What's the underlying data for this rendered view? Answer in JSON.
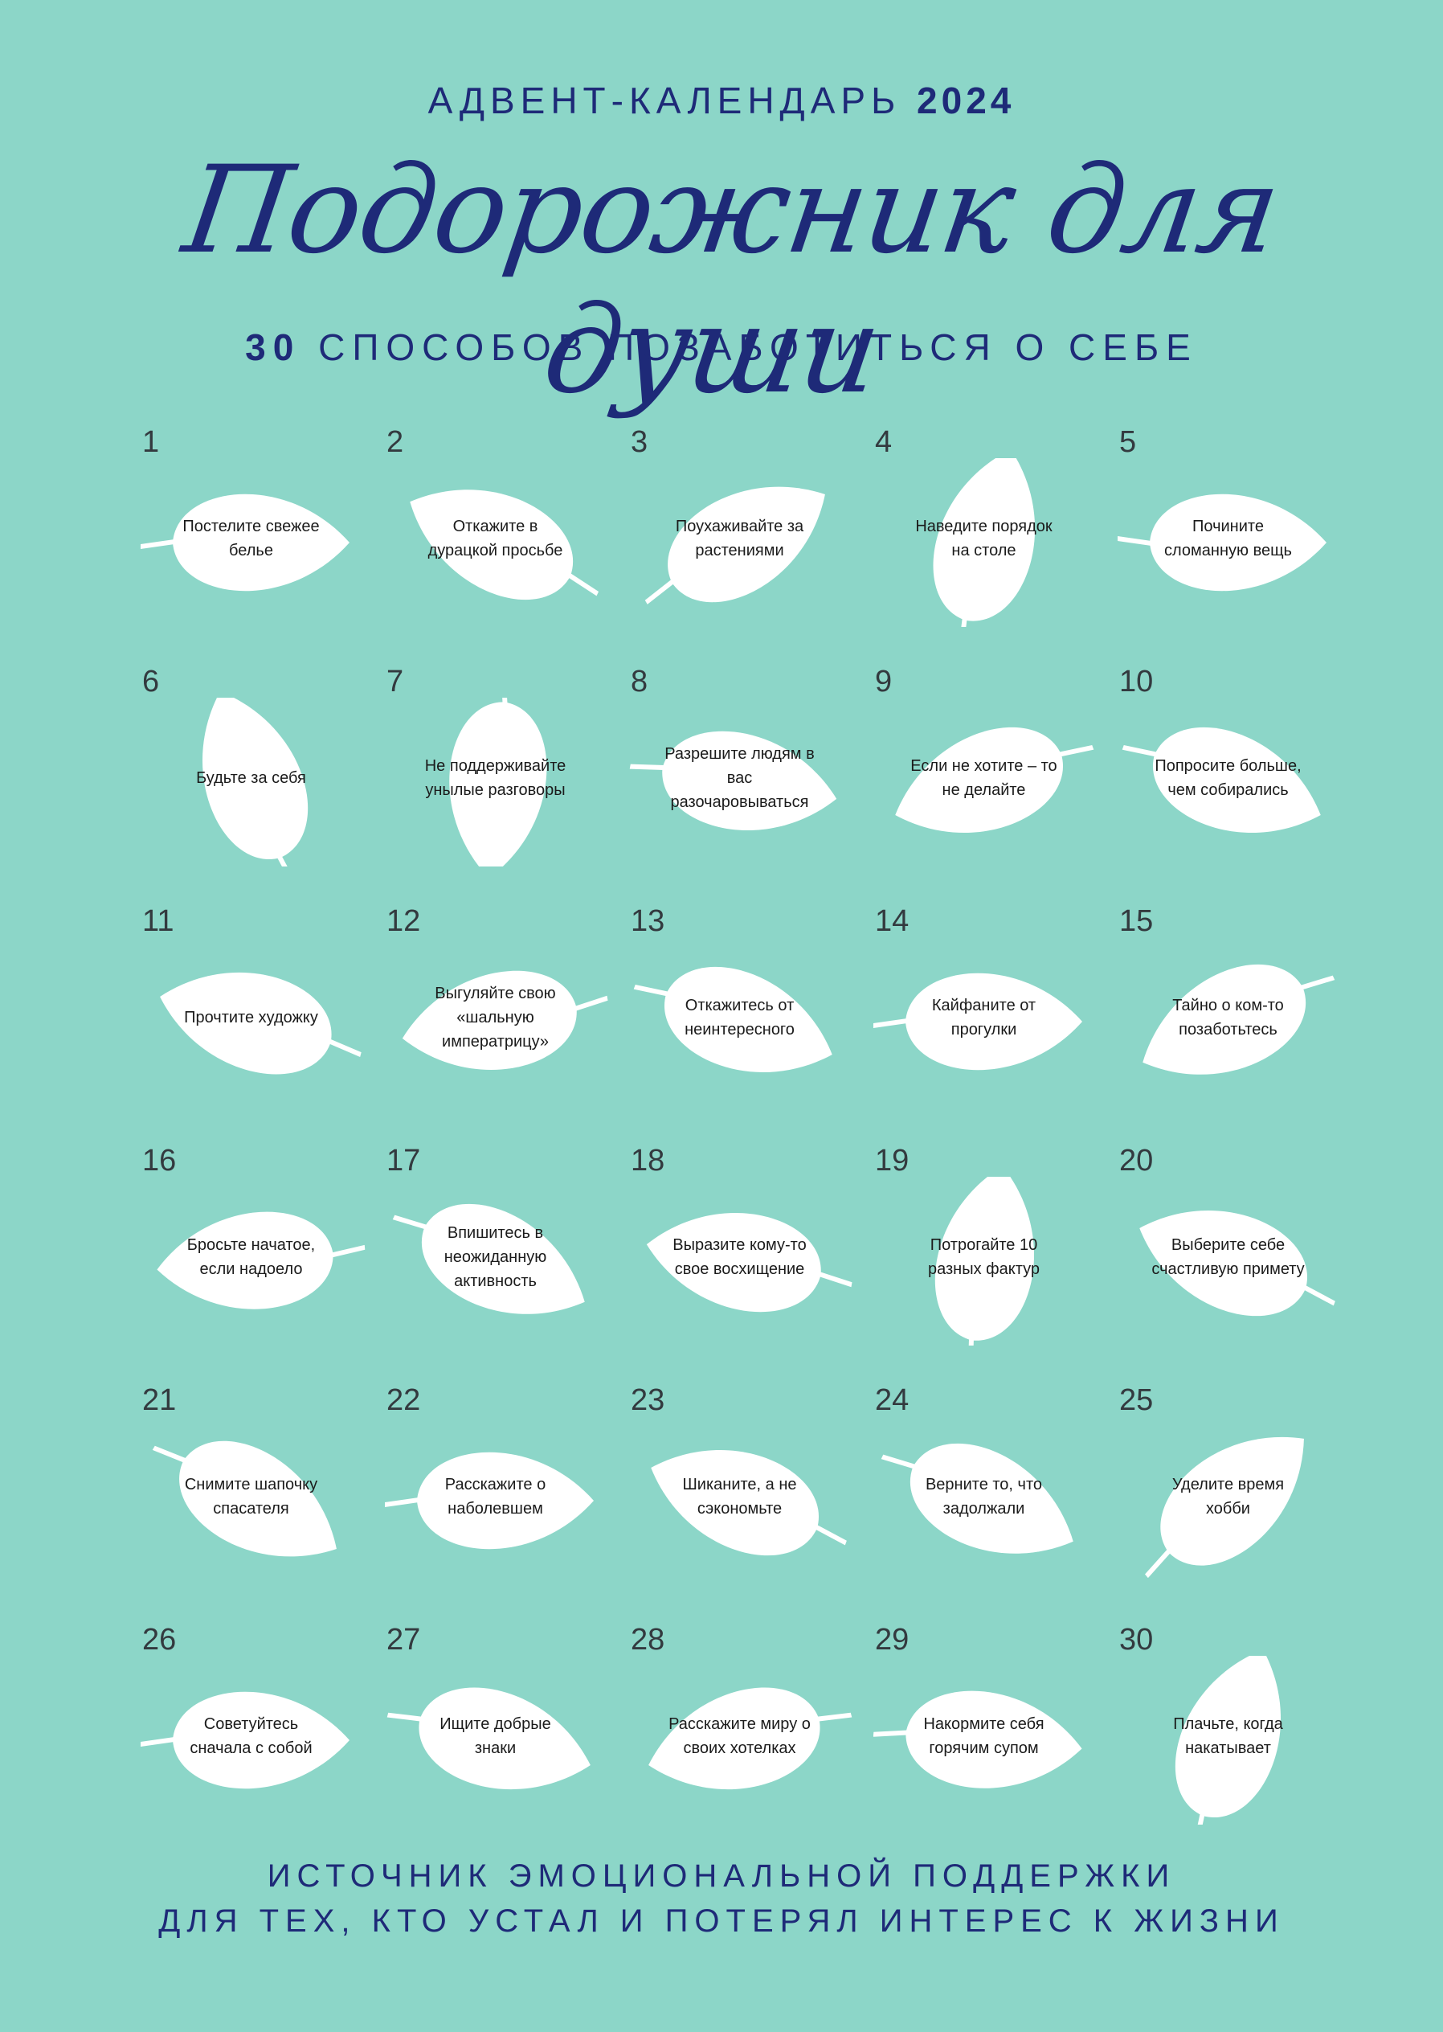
{
  "header": {
    "kicker": "АДВЕНТ-КАЛЕНДАРЬ",
    "year": "2024",
    "title": "Подорожник для души",
    "subtitle_number": "30",
    "subtitle_text": "СПОСОБОВ ПОЗАБОТИТЬСЯ О СЕБЕ"
  },
  "days": [
    {
      "n": "1",
      "text": "Постелите свежее белье"
    },
    {
      "n": "2",
      "text": "Откажите в дурацкой просьбе"
    },
    {
      "n": "3",
      "text": "Поухаживайте за растениями"
    },
    {
      "n": "4",
      "text": "Наведите порядок на столе"
    },
    {
      "n": "5",
      "text": "Почините сломанную вещь"
    },
    {
      "n": "6",
      "text": "Будьте за себя"
    },
    {
      "n": "7",
      "text": "Не поддерживайте унылые разговоры"
    },
    {
      "n": "8",
      "text": "Разрешите людям в вас разочаровываться"
    },
    {
      "n": "9",
      "text": "Если не хотите – то не делайте"
    },
    {
      "n": "10",
      "text": "Попросите больше, чем собирались"
    },
    {
      "n": "11",
      "text": "Прочтите художку"
    },
    {
      "n": "12",
      "text": "Выгуляйте свою «шальную императрицу»"
    },
    {
      "n": "13",
      "text": "Откажитесь от неинтересного"
    },
    {
      "n": "14",
      "text": "Кайфаните от прогулки"
    },
    {
      "n": "15",
      "text": "Тайно о ком-то позаботьтесь"
    },
    {
      "n": "16",
      "text": "Бросьте начатое, если надоело"
    },
    {
      "n": "17",
      "text": "Впишитесь в неожиданную активность"
    },
    {
      "n": "18",
      "text": "Выразите кому-то свое восхищение"
    },
    {
      "n": "19",
      "text": "Потрогайте 10 разных фактур"
    },
    {
      "n": "20",
      "text": "Выберите себе счастливую примету"
    },
    {
      "n": "21",
      "text": "Снимите шапочку спасателя"
    },
    {
      "n": "22",
      "text": "Расскажите о наболевшем"
    },
    {
      "n": "23",
      "text": "Шиканите, а не сэкономьте"
    },
    {
      "n": "24",
      "text": "Верните то, что задолжали"
    },
    {
      "n": "25",
      "text": "Уделите время хобби"
    },
    {
      "n": "26",
      "text": "Советуйтесь сначала с собой"
    },
    {
      "n": "27",
      "text": "Ищите добрые знаки"
    },
    {
      "n": "28",
      "text": "Расскажите миру о своих хотелках"
    },
    {
      "n": "29",
      "text": "Накормите себя горячим супом"
    },
    {
      "n": "30",
      "text": "Плачьте, когда накатывает"
    }
  ],
  "footer": {
    "line1": "ИСТОЧНИК ЭМОЦИОНАЛЬНОЙ ПОДДЕРЖКИ",
    "line2": "ДЛЯ ТЕХ, КТО УСТАЛ И ПОТЕРЯЛ ИНТЕРЕС К ЖИЗНИ"
  },
  "colors": {
    "background": "#8cd6c8",
    "navy": "#1e2a78",
    "leaf": "#ffffff"
  }
}
